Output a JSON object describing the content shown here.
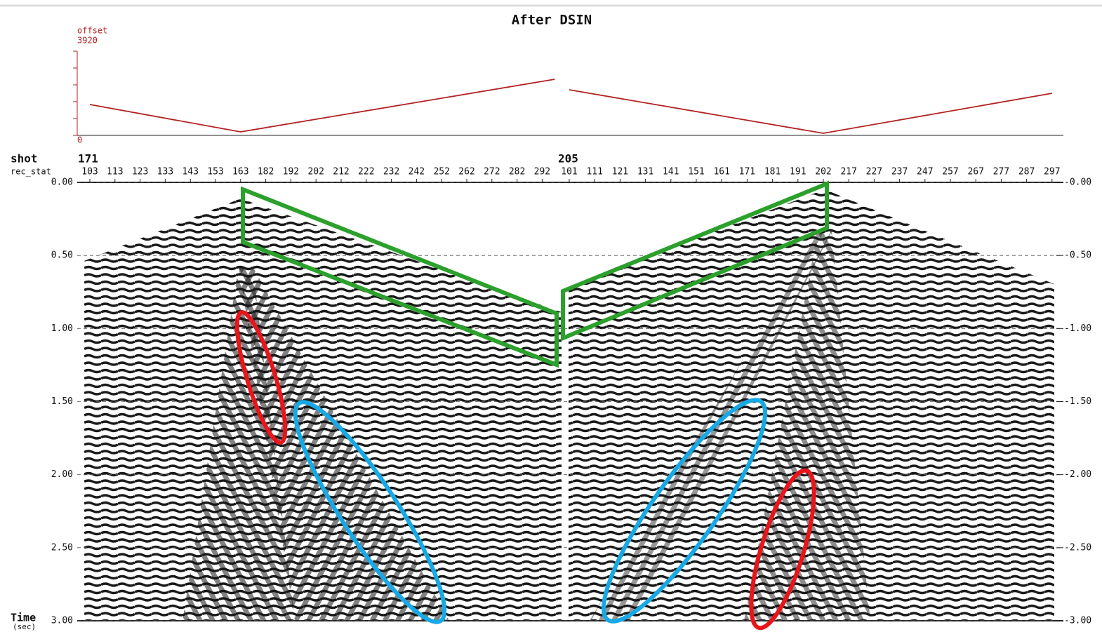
{
  "title": "After DSIN",
  "offset_panel": {
    "label": "offset",
    "ylim": [
      0,
      3920
    ],
    "yticks": [
      0,
      3920
    ],
    "color": "#b22222",
    "shots": [
      {
        "rec_stat": [
          103,
          163,
          297
        ],
        "offset": [
          1437,
          163,
          2613
        ]
      },
      {
        "rec_stat": [
          101,
          202,
          297
        ],
        "offset": [
          2123,
          98,
          1960
        ]
      }
    ]
  },
  "section": {
    "shot_label": "shot",
    "rec_stat_label": "rec_stat",
    "shots": [
      {
        "shot": 171,
        "rec_stat_ticks": [
          103,
          113,
          123,
          133,
          143,
          153,
          163,
          182,
          192,
          202,
          212,
          222,
          232,
          242,
          252,
          262,
          272,
          282,
          292
        ]
      },
      {
        "shot": 205,
        "rec_stat_ticks": [
          101,
          111,
          121,
          131,
          141,
          151,
          161,
          171,
          181,
          191,
          202,
          217,
          227,
          237,
          247,
          257,
          267,
          277,
          287,
          297
        ]
      }
    ],
    "time_label": "Time",
    "time_unit": "(sec)",
    "tlim": [
      0,
      3
    ],
    "tticks": [
      {
        "value": 0,
        "label": "0.00"
      },
      {
        "value": 0.5,
        "label": "0.50"
      },
      {
        "value": 1,
        "label": "1.00"
      },
      {
        "value": 1.5,
        "label": "1.50"
      },
      {
        "value": 2,
        "label": "2.00"
      },
      {
        "value": 2.5,
        "label": "2.50"
      },
      {
        "value": 3,
        "label": "3.00"
      }
    ],
    "tticks_right": [
      {
        "value": 0,
        "label": "-0.00"
      },
      {
        "value": 0.5,
        "label": "-0.50"
      },
      {
        "value": 1,
        "label": "-1.00"
      },
      {
        "value": 1.5,
        "label": "-1.50"
      },
      {
        "value": 2,
        "label": "-2.00"
      },
      {
        "value": 2.5,
        "label": "-2.50"
      },
      {
        "value": 3,
        "label": "-3.00"
      }
    ]
  }
}
